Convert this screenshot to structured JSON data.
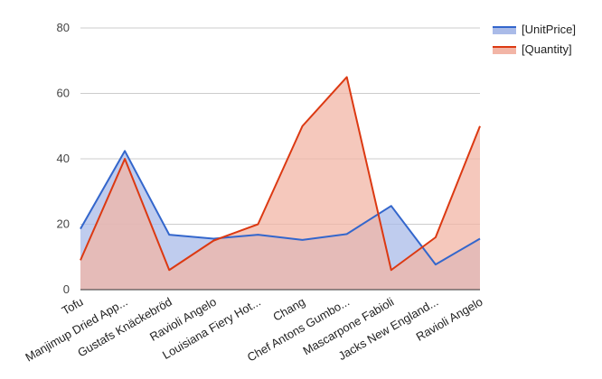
{
  "chart_data": {
    "type": "area",
    "categories": [
      "Tofu",
      "Manjimup Dried App...",
      "Gustafs Knäckebröd",
      "Ravioli Angelo",
      "Louisiana Fiery Hot...",
      "Chang",
      "Chef Antons Gumbo...",
      "Mascarpone Fabioli",
      "Jacks New England...",
      "Ravioli Angelo"
    ],
    "series": [
      {
        "name": "[UnitPrice]",
        "values": [
          18.6,
          42.4,
          16.8,
          15.6,
          16.8,
          15.2,
          17.0,
          25.6,
          7.7,
          15.6
        ],
        "color": "#3366cc",
        "fill": "#aabbe8"
      },
      {
        "name": "[Quantity]",
        "values": [
          9,
          40,
          6,
          15,
          20,
          50,
          65,
          6,
          16,
          50
        ],
        "color": "#dc3912",
        "fill": "#f2b5a6"
      }
    ],
    "yticks": [
      0,
      20,
      40,
      60,
      80
    ],
    "ylim": [
      0,
      80
    ],
    "grid": true,
    "legend": "right"
  }
}
